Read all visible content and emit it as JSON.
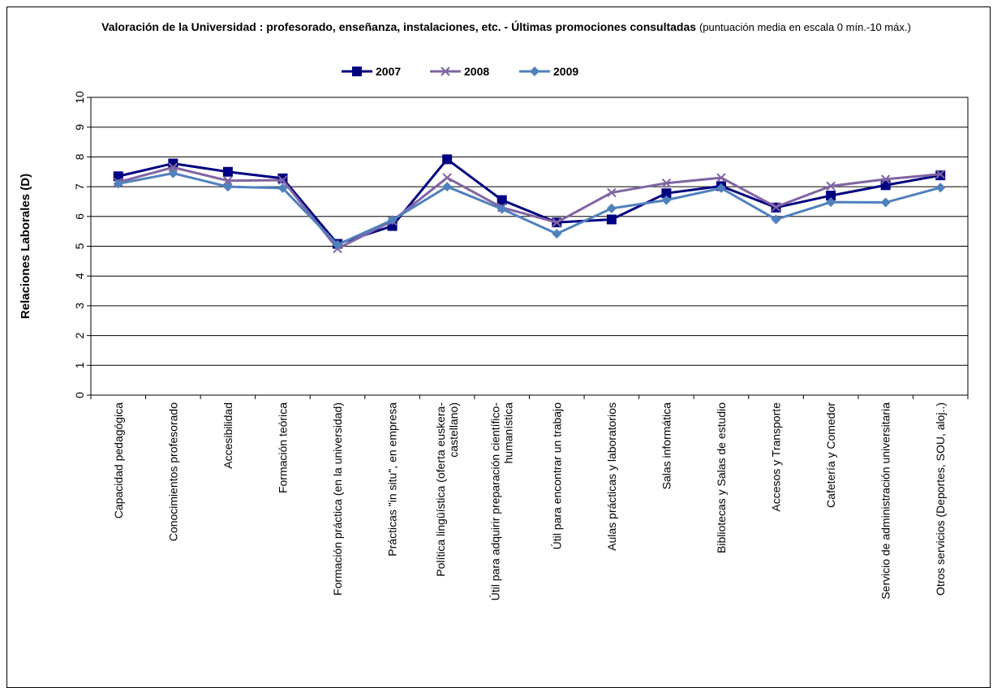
{
  "chart_data": {
    "type": "line",
    "title": "Valoración de la Universidad : profesorado, enseñanza, instalaciones, etc. - Últimas promociones consultadas",
    "subtitle": "(puntuación media en escala 0 mín.-10 máx.)",
    "xlabel": "",
    "ylabel": "Relaciones Laborales (D)",
    "ylim": [
      0,
      10
    ],
    "yticks": [
      "0",
      "1",
      "2",
      "3",
      "4",
      "5",
      "6",
      "7",
      "8",
      "9",
      "10"
    ],
    "grid": true,
    "legend_position": "top",
    "categories": [
      "Capacidad pedagógica",
      "Conocimientos profesorado",
      "Accesibilidad",
      "Formación teórica",
      "Formación práctica (en la universidad)",
      "Prácticas \"in situ\", en empresa",
      "Política lingüística (oferta euskera-castellano)",
      "Útil para adquirir preparación científico-humanística",
      "Útil para encontrar un trabajo",
      "Aulas prácticas y laboratorios",
      "Salas informática",
      "Bibliotecas y Salas de estudio",
      "Accesos y Transporte",
      "Cafetería y Comedor",
      "Servicio de administración universitaria",
      "Otros servicios (Deportes, SOU, aloj..)"
    ],
    "category_lines": [
      [
        "Capacidad pedagógica"
      ],
      [
        "Conocimientos profesorado"
      ],
      [
        "Accesibilidad"
      ],
      [
        "Formación teórica"
      ],
      [
        "Formación práctica (en la universidad)"
      ],
      [
        "Prácticas \"in situ\", en empresa"
      ],
      [
        "Política lingüística (oferta euskera-",
        "castellano)"
      ],
      [
        "Útil para adquirir preparación científico-",
        "humanística"
      ],
      [
        "Útil para encontrar un trabajo"
      ],
      [
        "Aulas prácticas y laboratorios"
      ],
      [
        "Salas informática"
      ],
      [
        "Bibliotecas y Salas de estudio"
      ],
      [
        "Accesos y Transporte"
      ],
      [
        "Cafetería y Comedor"
      ],
      [
        "Servicio de administración universitaria"
      ],
      [
        "Otros servicios (Deportes, SOU, aloj..)"
      ]
    ],
    "series": [
      {
        "name": "2007",
        "color": "#000080",
        "marker": "square",
        "values": [
          7.35,
          7.78,
          7.5,
          7.28,
          5.08,
          5.68,
          7.92,
          6.55,
          5.8,
          5.9,
          6.78,
          7.02,
          6.3,
          6.7,
          7.05,
          7.38
        ]
      },
      {
        "name": "2008",
        "color": "#8064A2",
        "marker": "x",
        "values": [
          7.15,
          7.65,
          7.2,
          7.22,
          4.92,
          5.85,
          7.3,
          6.3,
          5.8,
          6.8,
          7.12,
          7.3,
          6.32,
          7.02,
          7.25,
          7.42
        ]
      },
      {
        "name": "2009",
        "color": "#4F81BD",
        "marker": "diamond",
        "values": [
          7.1,
          7.45,
          7.0,
          6.95,
          5.05,
          5.88,
          7.0,
          6.25,
          5.42,
          6.27,
          6.55,
          6.95,
          5.9,
          6.48,
          6.47,
          6.97
        ]
      }
    ]
  }
}
